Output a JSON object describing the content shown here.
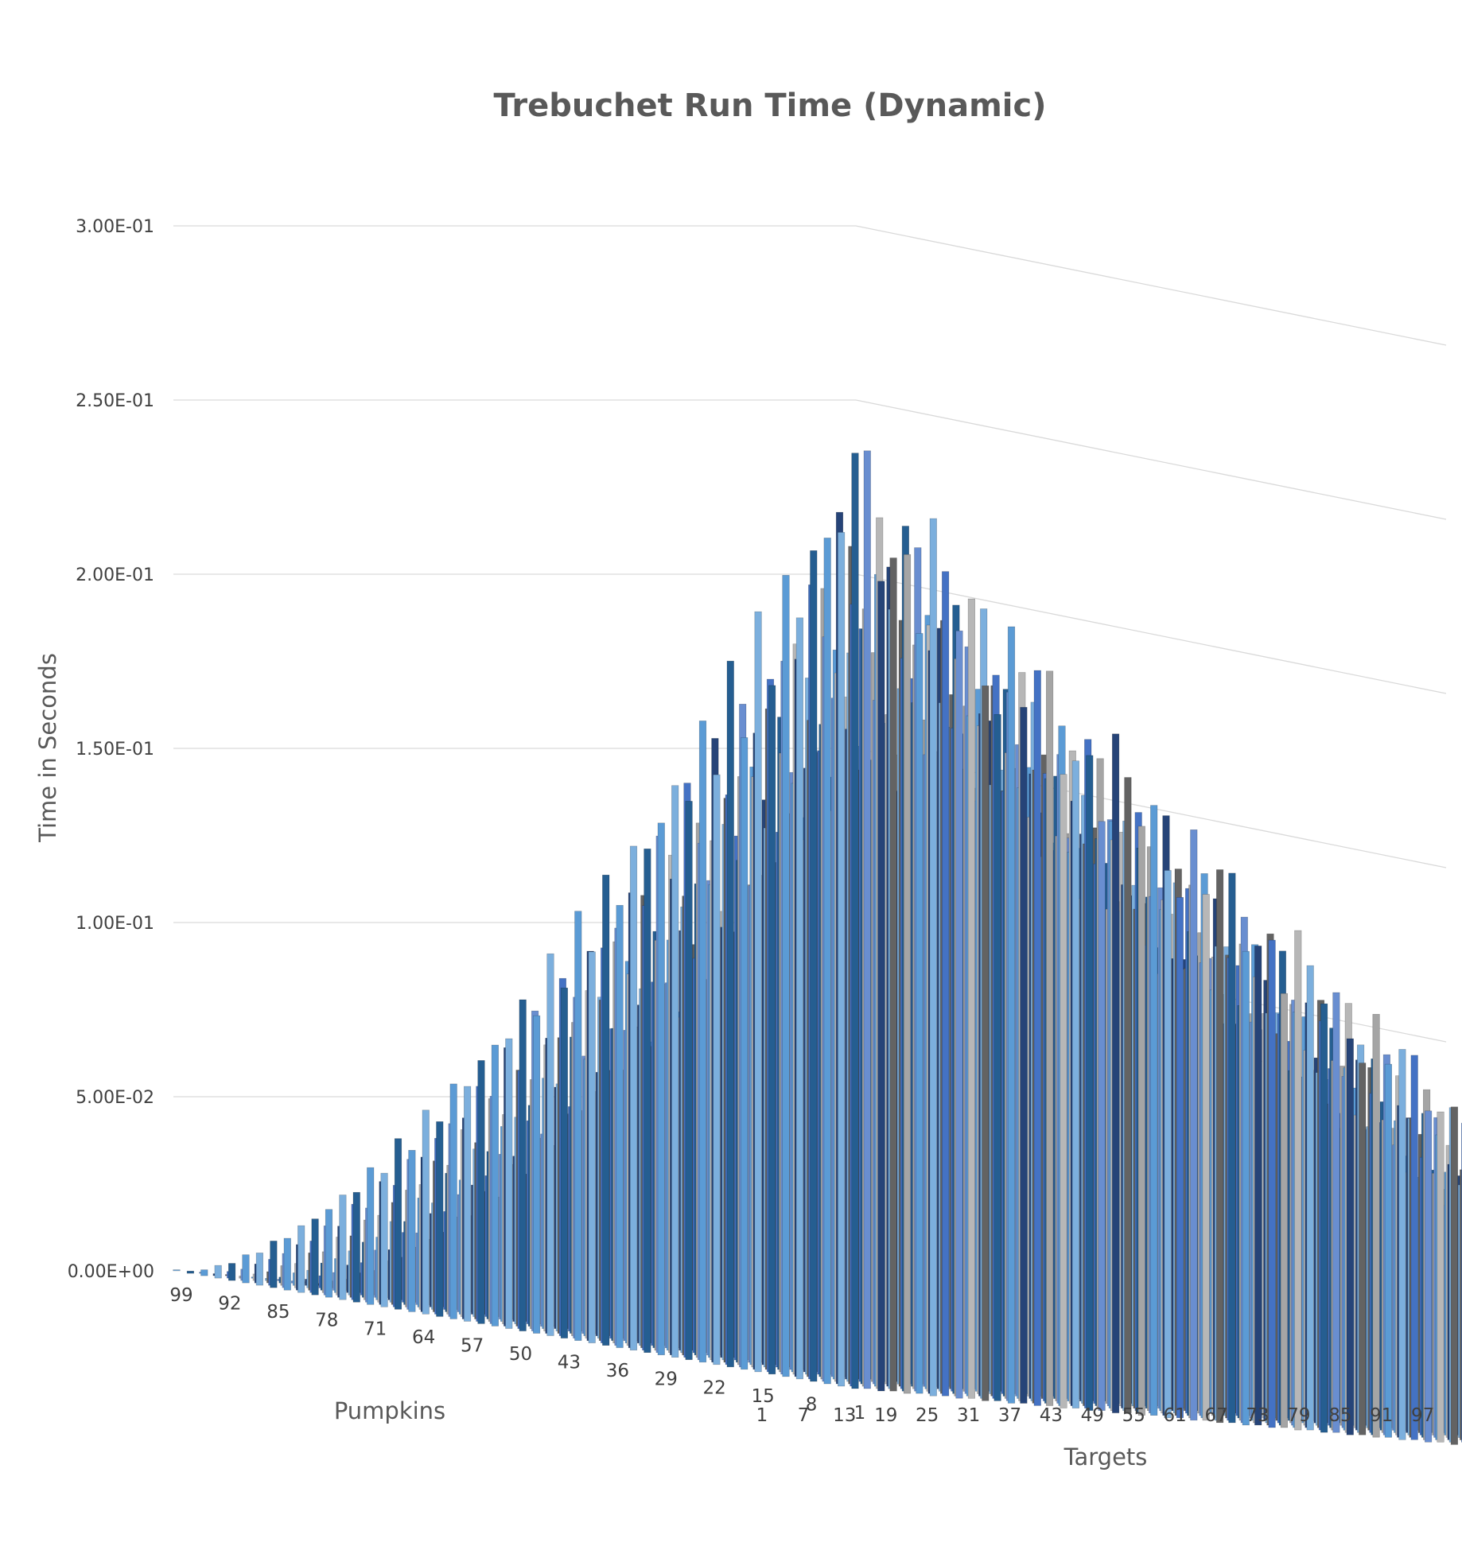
{
  "chart_data": {
    "type": "bar",
    "subtype": "3d-column",
    "title": "Trebuchet Run Time (Dynamic)",
    "ylabel": "Time in Seconds",
    "depth_axis_label": "Pumpkins",
    "xlabel": "Targets",
    "ylim": [
      0,
      0.3
    ],
    "y_ticks": [
      "0.00E+00",
      "5.00E-02",
      "1.00E-01",
      "1.50E-01",
      "2.00E-01",
      "2.50E-01",
      "3.00E-01"
    ],
    "y_tick_values": [
      0,
      0.05,
      0.1,
      0.15,
      0.2,
      0.25,
      0.3
    ],
    "pumpkin_tick_labels": [
      "99",
      "92",
      "85",
      "78",
      "71",
      "64",
      "57",
      "50",
      "43",
      "36",
      "29",
      "22",
      "15",
      "8",
      "1"
    ],
    "target_tick_labels": [
      "1",
      "7",
      "13",
      "19",
      "25",
      "31",
      "37",
      "43",
      "49",
      "55",
      "61",
      "67",
      "73",
      "79",
      "85",
      "91",
      "97"
    ],
    "pumpkins_range": [
      1,
      99
    ],
    "targets_range": [
      1,
      99
    ],
    "peak_value": 0.278,
    "series_colors": [
      "#4472C4",
      "#ED7D31",
      "#A5A5A5",
      "#FFC000",
      "#5B9BD5",
      "#70AD47",
      "#264478",
      "#9E480E",
      "#636363",
      "#997300",
      "#255E91",
      "#43682B",
      "#698ED0",
      "#F1975A",
      "#B7B7B7",
      "#FFCD33",
      "#7CAFDD",
      "#8CC168"
    ],
    "grid": true,
    "legend": "none"
  }
}
